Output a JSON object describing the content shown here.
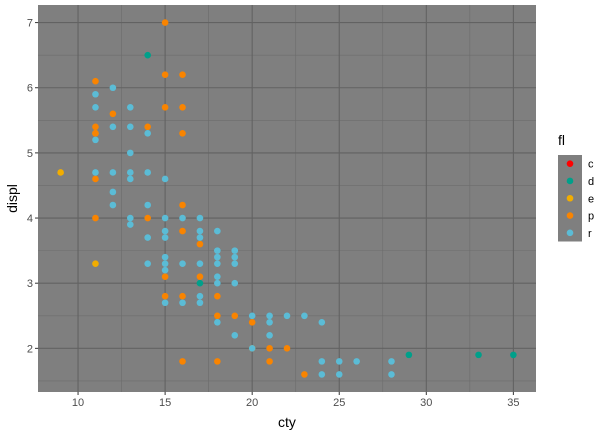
{
  "chart_data": {
    "type": "scatter",
    "xlabel": "cty",
    "ylabel": "displ",
    "xlim": [
      7.7,
      36.3
    ],
    "ylim": [
      1.33,
      7.27
    ],
    "x_ticks": [
      "10",
      "15",
      "20",
      "25",
      "30",
      "35"
    ],
    "y_ticks": [
      "2",
      "3",
      "4",
      "5",
      "6",
      "7"
    ],
    "grid": true,
    "panel_color": "#7f7f7f",
    "legend": {
      "title": "fl",
      "placement": "right",
      "entries": [
        {
          "label": "c",
          "color": "#ff0000"
        },
        {
          "label": "d",
          "color": "#00a08a"
        },
        {
          "label": "e",
          "color": "#f2ad00"
        },
        {
          "label": "p",
          "color": "#f98400"
        },
        {
          "label": "r",
          "color": "#5bbcd6"
        }
      ]
    },
    "series": [
      {
        "key": "c",
        "color": "#ff0000",
        "points": []
      },
      {
        "key": "d",
        "color": "#00a08a",
        "points": [
          [
            14,
            6.5
          ],
          [
            17,
            3.0
          ],
          [
            29,
            1.9
          ],
          [
            33,
            1.9
          ],
          [
            35,
            1.9
          ]
        ]
      },
      {
        "key": "e",
        "color": "#f2ad00",
        "points": [
          [
            9,
            4.7
          ],
          [
            11,
            5.3
          ],
          [
            11,
            3.3
          ]
        ]
      },
      {
        "key": "p",
        "color": "#f98400",
        "points": [
          [
            15,
            7.0
          ],
          [
            11,
            6.1
          ],
          [
            15,
            6.2
          ],
          [
            16,
            6.2
          ],
          [
            12,
            5.6
          ],
          [
            15,
            5.7
          ],
          [
            16,
            5.7
          ],
          [
            11,
            5.4
          ],
          [
            14,
            5.4
          ],
          [
            11,
            5.3
          ],
          [
            16,
            5.3
          ],
          [
            11,
            4.6
          ],
          [
            11,
            4.0
          ],
          [
            14,
            4.0
          ],
          [
            16,
            4.2
          ],
          [
            16,
            3.8
          ],
          [
            17,
            3.6
          ],
          [
            15,
            3.1
          ],
          [
            17,
            3.1
          ],
          [
            15,
            2.8
          ],
          [
            16,
            2.8
          ],
          [
            18,
            2.8
          ],
          [
            18,
            2.5
          ],
          [
            19,
            2.5
          ],
          [
            20,
            2.4
          ],
          [
            20,
            2.0
          ],
          [
            21,
            2.0
          ],
          [
            22,
            2.0
          ],
          [
            16,
            1.8
          ],
          [
            18,
            1.8
          ],
          [
            21,
            1.8
          ],
          [
            23,
            1.6
          ]
        ]
      },
      {
        "key": "r",
        "color": "#5bbcd6",
        "points": [
          [
            11,
            5.9
          ],
          [
            12,
            6.0
          ],
          [
            11,
            5.7
          ],
          [
            13,
            5.7
          ],
          [
            12,
            5.4
          ],
          [
            13,
            5.4
          ],
          [
            14,
            5.3
          ],
          [
            11,
            5.2
          ],
          [
            13,
            5.0
          ],
          [
            11,
            4.7
          ],
          [
            12,
            4.7
          ],
          [
            13,
            4.7
          ],
          [
            14,
            4.7
          ],
          [
            13,
            4.6
          ],
          [
            15,
            4.6
          ],
          [
            12,
            4.4
          ],
          [
            12,
            4.2
          ],
          [
            14,
            4.2
          ],
          [
            13,
            4.0
          ],
          [
            15,
            4.0
          ],
          [
            16,
            4.0
          ],
          [
            17,
            4.0
          ],
          [
            13,
            3.9
          ],
          [
            15,
            3.8
          ],
          [
            17,
            3.8
          ],
          [
            18,
            3.8
          ],
          [
            14,
            3.7
          ],
          [
            15,
            3.7
          ],
          [
            17,
            3.7
          ],
          [
            18,
            3.5
          ],
          [
            19,
            3.5
          ],
          [
            15,
            3.4
          ],
          [
            18,
            3.4
          ],
          [
            19,
            3.4
          ],
          [
            14,
            3.3
          ],
          [
            15,
            3.3
          ],
          [
            16,
            3.3
          ],
          [
            17,
            3.3
          ],
          [
            18,
            3.3
          ],
          [
            19,
            3.3
          ],
          [
            15,
            3.2
          ],
          [
            18,
            3.1
          ],
          [
            18,
            3.0
          ],
          [
            19,
            3.0
          ],
          [
            15,
            2.7
          ],
          [
            16,
            2.7
          ],
          [
            17,
            2.7
          ],
          [
            17,
            2.8
          ],
          [
            18,
            2.4
          ],
          [
            19,
            2.2
          ],
          [
            20,
            2.0
          ],
          [
            20,
            2.5
          ],
          [
            21,
            2.5
          ],
          [
            21,
            2.4
          ],
          [
            22,
            2.5
          ],
          [
            23,
            2.5
          ],
          [
            21,
            2.2
          ],
          [
            24,
            2.4
          ],
          [
            24,
            1.8
          ],
          [
            25,
            1.8
          ],
          [
            26,
            1.8
          ],
          [
            24,
            1.6
          ],
          [
            25,
            1.6
          ],
          [
            28,
            1.8
          ],
          [
            28,
            1.6
          ]
        ]
      }
    ]
  }
}
